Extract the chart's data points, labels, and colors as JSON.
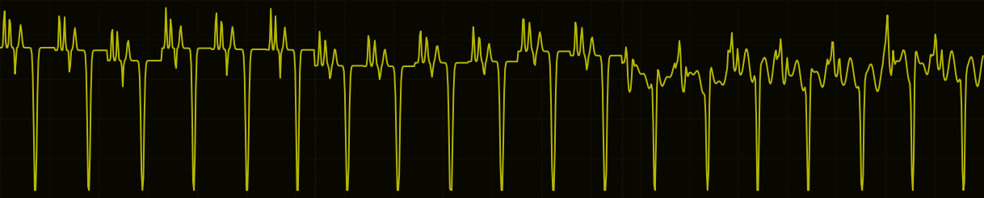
{
  "background_color": "#080800",
  "grid_color": "#1e1e08",
  "line_color": "#b8b800",
  "line_width": 1.4,
  "figsize": [
    12.18,
    2.45
  ],
  "dpi": 100,
  "ylim": [
    0.0,
    1.0
  ],
  "grid_alpha": 0.9,
  "grid_linestyle": ":",
  "grid_linewidth": 0.7,
  "beat_period": 55,
  "num_beats": 19
}
